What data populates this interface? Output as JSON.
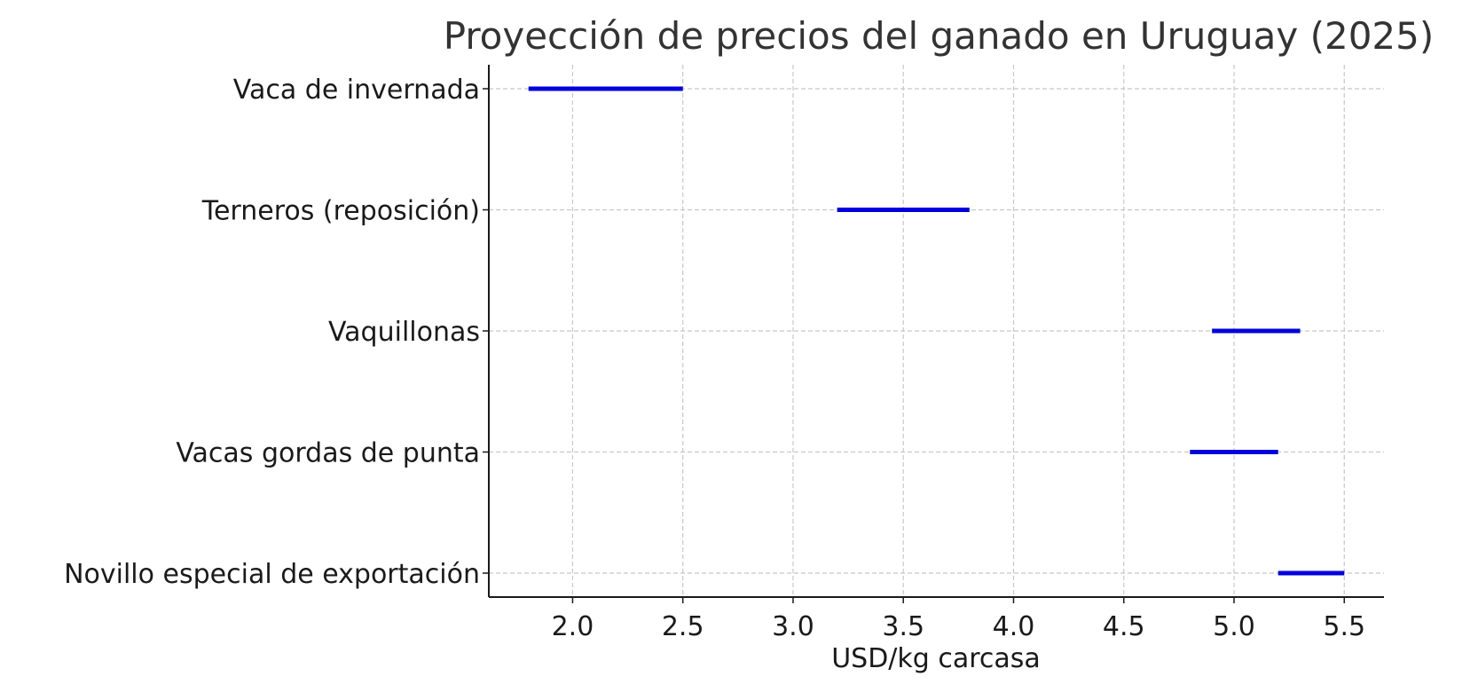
{
  "chart_data": {
    "type": "range-bar",
    "title": "Proyección de precios del ganado en Uruguay (2025)",
    "xlabel": "USD/kg carcasa",
    "ylabel": "",
    "xlim": [
      1.62,
      5.68
    ],
    "xticks": [
      2.0,
      2.5,
      3.0,
      3.5,
      4.0,
      4.5,
      5.0,
      5.5
    ],
    "xtick_labels": [
      "2.0",
      "2.5",
      "3.0",
      "3.5",
      "4.0",
      "4.5",
      "5.0",
      "5.5"
    ],
    "grid": true,
    "color": "#0000dd",
    "categories": [
      "Vaca de invernada",
      "Terneros (reposición)",
      "Vaquillonas",
      "Vacas gordas de punta",
      "Novillo especial de exportación"
    ],
    "ranges": [
      {
        "min": 1.8,
        "max": 2.5
      },
      {
        "min": 3.2,
        "max": 3.8
      },
      {
        "min": 4.9,
        "max": 5.3
      },
      {
        "min": 4.8,
        "max": 5.2
      },
      {
        "min": 5.2,
        "max": 5.5
      }
    ]
  }
}
